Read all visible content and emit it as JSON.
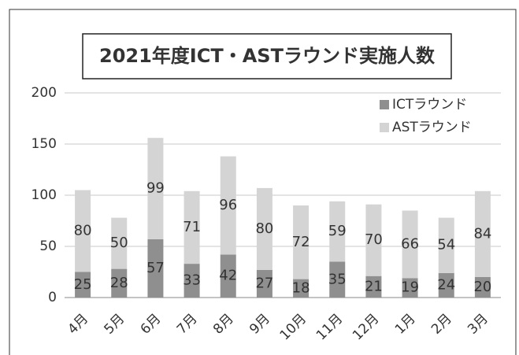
{
  "chart_data": {
    "type": "stacked_bar",
    "title": "2021年度ICT・ASTラウンド実施人数",
    "categories": [
      "4月",
      "5月",
      "6月",
      "7月",
      "8月",
      "9月",
      "10月",
      "11月",
      "12月",
      "1月",
      "2月",
      "3月"
    ],
    "series": [
      {
        "name": "ICTラウンド",
        "color": "#8f8f8f",
        "values": [
          25,
          28,
          57,
          33,
          42,
          27,
          18,
          35,
          21,
          19,
          24,
          20
        ]
      },
      {
        "name": "ASTラウンド",
        "color": "#d4d4d4",
        "values": [
          80,
          50,
          99,
          71,
          96,
          80,
          72,
          59,
          70,
          66,
          54,
          84
        ]
      }
    ],
    "ylim": [
      0,
      200
    ],
    "yticks": [
      0,
      50,
      100,
      150,
      200
    ],
    "grid": true,
    "legend": "top-right"
  }
}
